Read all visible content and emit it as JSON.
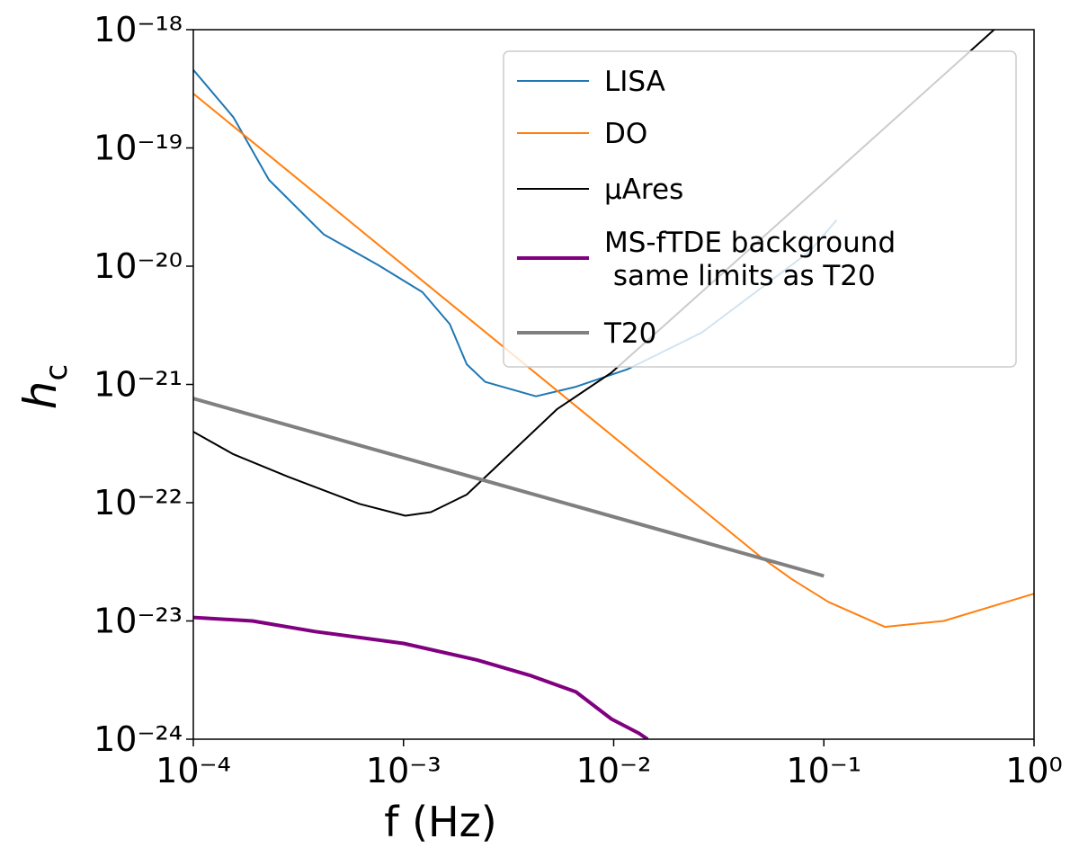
{
  "chart_data": {
    "type": "line",
    "xlabel": "f (Hz)",
    "ylabel": "h",
    "ylabel_subscript": "c",
    "xscale": "log",
    "yscale": "log",
    "xlim": [
      0.0001,
      1
    ],
    "ylim": [
      1e-24,
      1e-18
    ],
    "xticks": [
      {
        "value": 0.0001,
        "label": "10⁻⁴"
      },
      {
        "value": 0.001,
        "label": "10⁻³"
      },
      {
        "value": 0.01,
        "label": "10⁻²"
      },
      {
        "value": 0.1,
        "label": "10⁻¹"
      },
      {
        "value": 1,
        "label": "10⁰"
      }
    ],
    "yticks": [
      {
        "value": 1e-24,
        "label": "10⁻²⁴"
      },
      {
        "value": 1e-23,
        "label": "10⁻²³"
      },
      {
        "value": 1e-22,
        "label": "10⁻²²"
      },
      {
        "value": 1e-21,
        "label": "10⁻²¹"
      },
      {
        "value": 1e-20,
        "label": "10⁻²⁰"
      },
      {
        "value": 1e-19,
        "label": "10⁻¹⁹"
      },
      {
        "value": 1e-18,
        "label": "10⁻¹⁸"
      }
    ],
    "legend": "upper right",
    "series": [
      {
        "name": "LISA",
        "color": "#1f77b4",
        "linewidth": 2,
        "x": [
          0.0001,
          0.000155,
          0.000229,
          0.000417,
          0.000759,
          0.00123,
          0.00166,
          0.002,
          0.00245,
          0.00427,
          0.00661,
          0.0117,
          0.0263,
          0.0851,
          0.115
        ],
        "values": [
          4.57e-19,
          1.82e-19,
          5.37e-20,
          1.86e-20,
          1.02e-20,
          6.03e-21,
          3.24e-21,
          1.48e-21,
          1.05e-21,
          7.94e-22,
          9.55e-22,
          1.35e-21,
          2.75e-21,
          1.32e-20,
          2.45e-20
        ]
      },
      {
        "name": "DO",
        "color": "#ff7f0e",
        "linewidth": 2,
        "x": [
          0.0001,
          0.0501,
          0.0708,
          0.105,
          0.195,
          0.372,
          1
        ],
        "values": [
          2.88e-19,
          3.47e-23,
          2.24e-23,
          1.45e-23,
          8.91e-24,
          1e-23,
          1.7e-23
        ]
      },
      {
        "name": "μAres",
        "color": "#000000",
        "linewidth": 2,
        "x": [
          0.0001,
          0.000155,
          0.000282,
          0.000617,
          0.00102,
          0.00135,
          0.002,
          0.00302,
          0.00537,
          0.00977,
          0.0525,
          0.646
        ],
        "values": [
          3.98e-22,
          2.57e-22,
          1.66e-22,
          9.77e-23,
          7.76e-23,
          8.32e-23,
          1.17e-22,
          2.34e-22,
          6.17e-22,
          1.26e-21,
          1.82e-20,
          1e-18
        ]
      },
      {
        "name": "MS-fTDE background\n same limits as T20",
        "color": "#800080",
        "linewidth": 4,
        "x": [
          0.0001,
          0.000191,
          0.00038,
          0.001,
          0.00224,
          0.00398,
          0.00661,
          0.00977,
          0.0132,
          0.0145
        ],
        "values": [
          1.07e-23,
          1e-23,
          8.13e-24,
          6.46e-24,
          4.68e-24,
          3.47e-24,
          2.51e-24,
          1.48e-24,
          1.12e-24,
          1e-24
        ]
      },
      {
        "name": "T20",
        "color": "#808080",
        "linewidth": 4,
        "x": [
          0.0001,
          0.1
        ],
        "values": [
          7.59e-22,
          2.4e-23
        ]
      }
    ]
  }
}
